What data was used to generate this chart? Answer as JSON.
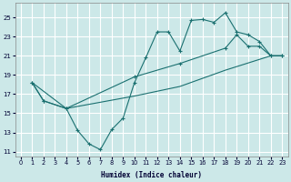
{
  "xlabel": "Humidex (Indice chaleur)",
  "bg_color": "#cce8e8",
  "grid_color": "#ffffff",
  "line_color": "#1a7070",
  "xlim": [
    -0.5,
    23.5
  ],
  "ylim": [
    10.5,
    26.5
  ],
  "yticks": [
    11,
    13,
    15,
    17,
    19,
    21,
    23,
    25
  ],
  "xticks": [
    0,
    1,
    2,
    3,
    4,
    5,
    6,
    7,
    8,
    9,
    10,
    11,
    12,
    13,
    14,
    15,
    16,
    17,
    18,
    19,
    20,
    21,
    22,
    23
  ],
  "line1_x": [
    1,
    2,
    4,
    5,
    6,
    7,
    8,
    9,
    10,
    11,
    12,
    13,
    14,
    15,
    16,
    17,
    18,
    19,
    20,
    21,
    22,
    23
  ],
  "line1_y": [
    18.2,
    16.3,
    15.5,
    13.2,
    11.8,
    11.2,
    13.3,
    14.5,
    18.2,
    20.8,
    23.5,
    23.5,
    21.5,
    24.7,
    24.8,
    24.5,
    25.5,
    23.5,
    23.2,
    22.5,
    21.0,
    21.0
  ],
  "line2_x": [
    1,
    2,
    4,
    10,
    14,
    18,
    19,
    20,
    21,
    22,
    23
  ],
  "line2_y": [
    18.2,
    16.3,
    15.5,
    18.8,
    20.2,
    21.8,
    23.2,
    22.0,
    22.0,
    21.0,
    21.0
  ],
  "line3_x": [
    1,
    4,
    10,
    14,
    18,
    22,
    23
  ],
  "line3_y": [
    18.2,
    15.5,
    16.8,
    17.8,
    19.5,
    21.0,
    21.0
  ]
}
